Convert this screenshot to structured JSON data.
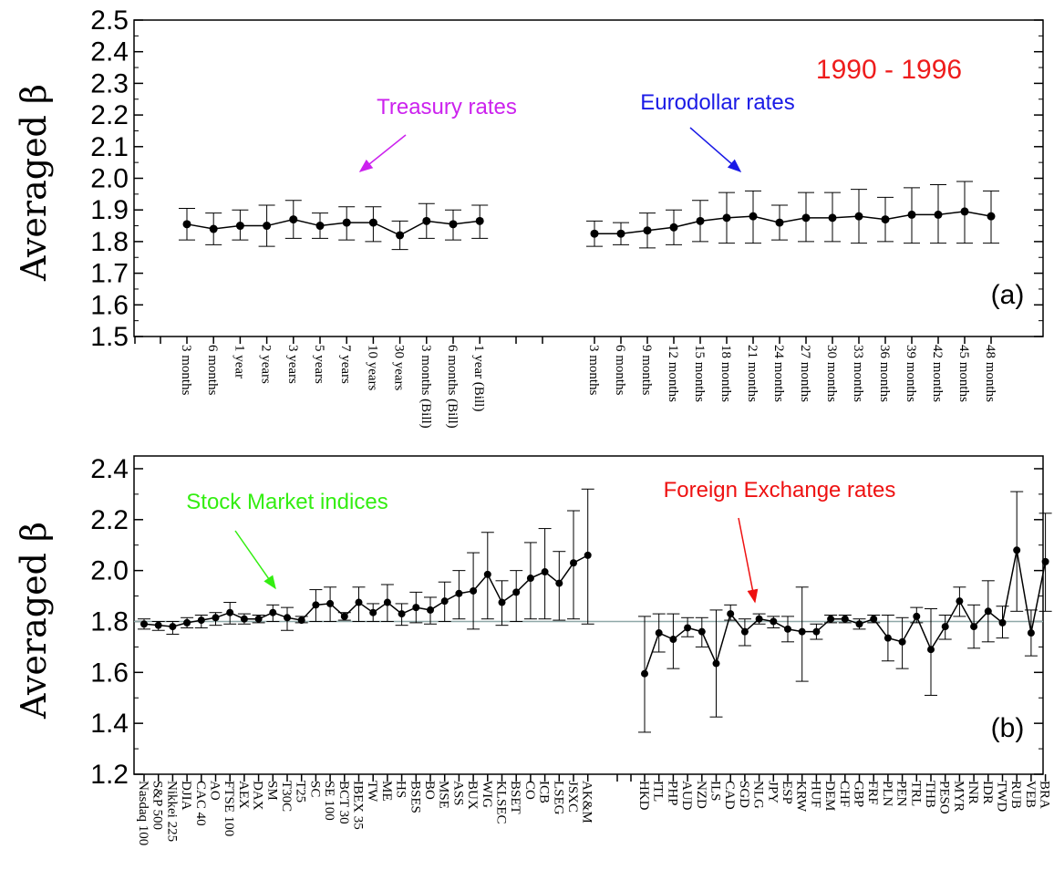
{
  "colors": {
    "treasury": "#cc22ee",
    "eurodollar": "#1a1ae6",
    "stock": "#33ee11",
    "fx": "#ee1111",
    "period": "#ee1c1c",
    "refline": "#8fa8a8"
  },
  "chart_data": [
    {
      "type": "scatter",
      "panel_label": "(a)",
      "period_label": "1990 - 1996",
      "ylabel": "Averaged β",
      "ylim": [
        1.5,
        2.5
      ],
      "yticks": [
        "1.5",
        "1.6",
        "1.7",
        "1.8",
        "1.9",
        "2.0",
        "2.1",
        "2.2",
        "2.3",
        "2.4",
        "2.5"
      ],
      "grid": false,
      "annotations": [
        {
          "text": "Treasury rates",
          "color": "#cc22ee"
        },
        {
          "text": "Eurodollar rates",
          "color": "#1a1ae6"
        }
      ],
      "series": [
        {
          "group": "Treasury rates",
          "categories": [
            "3 months",
            "6 months",
            "1 year",
            "2 years",
            "3 years",
            "5 years",
            "7 years",
            "10 years",
            "30 years",
            "3 months (Bill)",
            "6 months (Bill)",
            "1 year (Bill)"
          ],
          "values": [
            1.855,
            1.84,
            1.85,
            1.85,
            1.87,
            1.85,
            1.86,
            1.86,
            1.82,
            1.865,
            1.855,
            1.865
          ],
          "err_low": [
            1.805,
            1.79,
            1.805,
            1.785,
            1.81,
            1.81,
            1.805,
            1.8,
            1.775,
            1.81,
            1.805,
            1.81
          ],
          "err_high": [
            1.905,
            1.89,
            1.9,
            1.915,
            1.93,
            1.89,
            1.91,
            1.91,
            1.865,
            1.92,
            1.9,
            1.915
          ]
        },
        {
          "group": "Eurodollar rates",
          "categories": [
            "3 months",
            "6 months",
            "9 months",
            "12 months",
            "15 months",
            "18 months",
            "21 months",
            "24 months",
            "27 months",
            "30 months",
            "33 months",
            "36 months",
            "39 months",
            "42 months",
            "45 months",
            "48 months"
          ],
          "values": [
            1.825,
            1.825,
            1.835,
            1.845,
            1.865,
            1.875,
            1.88,
            1.86,
            1.875,
            1.875,
            1.88,
            1.87,
            1.885,
            1.885,
            1.895,
            1.88
          ],
          "err_low": [
            1.785,
            1.79,
            1.78,
            1.79,
            1.8,
            1.795,
            1.795,
            1.805,
            1.8,
            1.8,
            1.795,
            1.8,
            1.795,
            1.795,
            1.795,
            1.795
          ],
          "err_high": [
            1.865,
            1.86,
            1.89,
            1.9,
            1.93,
            1.955,
            1.96,
            1.915,
            1.955,
            1.955,
            1.965,
            1.94,
            1.97,
            1.98,
            1.99,
            1.96
          ]
        }
      ]
    },
    {
      "type": "scatter",
      "panel_label": "(b)",
      "ylabel": "Averaged β",
      "ylim": [
        1.2,
        2.5
      ],
      "yticks": [
        "1.2",
        "1.4",
        "1.6",
        "1.8",
        "2.0",
        "2.2",
        "2.4"
      ],
      "grid": false,
      "reference_line": 1.8,
      "annotations": [
        {
          "text": "Stock Market indices",
          "color": "#33ee11"
        },
        {
          "text": "Foreign Exchange rates",
          "color": "#ee1111"
        }
      ],
      "series": [
        {
          "group": "Stock Market indices",
          "categories": [
            "Nasdaq 100",
            "S&P 500",
            "Nikkei 225",
            "DJIA",
            "CAC 40",
            "AO",
            "FTSE 100",
            "AEX",
            "DAX",
            "SM",
            "T30C",
            "T25",
            "SC",
            "SE 100",
            "BCT 30",
            "IBEX 35",
            "TW",
            "ME",
            "HS",
            "BSES",
            "BO",
            "MSE",
            "ASS",
            "BUX",
            "WIG",
            "KLSEC",
            "BSET",
            "CO",
            "ICB",
            "LSEG",
            "JSXC",
            "AK&M"
          ],
          "values": [
            1.79,
            1.785,
            1.78,
            1.795,
            1.805,
            1.815,
            1.835,
            1.81,
            1.81,
            1.835,
            1.815,
            1.805,
            1.865,
            1.87,
            1.82,
            1.875,
            1.835,
            1.875,
            1.83,
            1.855,
            1.845,
            1.88,
            1.91,
            1.92,
            1.985,
            1.875,
            1.915,
            1.97,
            1.995,
            1.95,
            2.03,
            2.06
          ],
          "err_low": [
            1.77,
            1.765,
            1.75,
            1.775,
            1.775,
            1.785,
            1.79,
            1.79,
            1.795,
            1.8,
            1.765,
            1.795,
            1.8,
            1.8,
            1.805,
            1.8,
            1.8,
            1.8,
            1.785,
            1.795,
            1.79,
            1.8,
            1.81,
            1.77,
            1.81,
            1.785,
            1.8,
            1.81,
            1.81,
            1.805,
            1.81,
            1.79
          ],
          "err_high": [
            1.81,
            1.8,
            1.8,
            1.815,
            1.825,
            1.835,
            1.875,
            1.83,
            1.825,
            1.865,
            1.855,
            1.82,
            1.925,
            1.935,
            1.835,
            1.935,
            1.87,
            1.945,
            1.87,
            1.915,
            1.895,
            1.955,
            2.0,
            2.07,
            2.15,
            1.96,
            2.0,
            2.11,
            2.165,
            2.075,
            2.235,
            2.32
          ]
        },
        {
          "group": "Foreign Exchange rates",
          "categories": [
            "HKD",
            "ITL",
            "PHP",
            "AUD",
            "NZD",
            "ILS",
            "CAD",
            "SGD",
            "NLG",
            "JPY",
            "ESP",
            "KRW",
            "HUF",
            "DEM",
            "CHF",
            "GBP",
            "FRF",
            "PLN",
            "PEN",
            "TRL",
            "THB",
            "PESO",
            "MYR",
            "INR",
            "IDR",
            "TWD",
            "RUB",
            "VEB",
            "BRA"
          ],
          "values": [
            1.595,
            1.755,
            1.73,
            1.775,
            1.76,
            1.635,
            1.83,
            1.76,
            1.81,
            1.8,
            1.77,
            1.76,
            1.76,
            1.81,
            1.81,
            1.79,
            1.81,
            1.735,
            1.72,
            1.82,
            1.69,
            1.78,
            1.88,
            1.78,
            1.84,
            1.795,
            2.08,
            1.755,
            2.035
          ],
          "err_low": [
            1.365,
            1.68,
            1.615,
            1.74,
            1.7,
            1.425,
            1.805,
            1.705,
            1.79,
            1.775,
            1.72,
            1.565,
            1.73,
            1.795,
            1.795,
            1.77,
            1.795,
            1.645,
            1.615,
            1.795,
            1.51,
            1.73,
            1.82,
            1.695,
            1.72,
            1.735,
            1.84,
            1.665,
            1.84
          ],
          "err_high": [
            1.82,
            1.83,
            1.83,
            1.815,
            1.815,
            1.845,
            1.865,
            1.81,
            1.83,
            1.82,
            1.82,
            1.935,
            1.79,
            1.825,
            1.825,
            1.81,
            1.825,
            1.825,
            1.815,
            1.855,
            1.85,
            1.825,
            1.935,
            1.865,
            1.96,
            1.86,
            2.31,
            1.845,
            2.225
          ]
        }
      ]
    }
  ]
}
